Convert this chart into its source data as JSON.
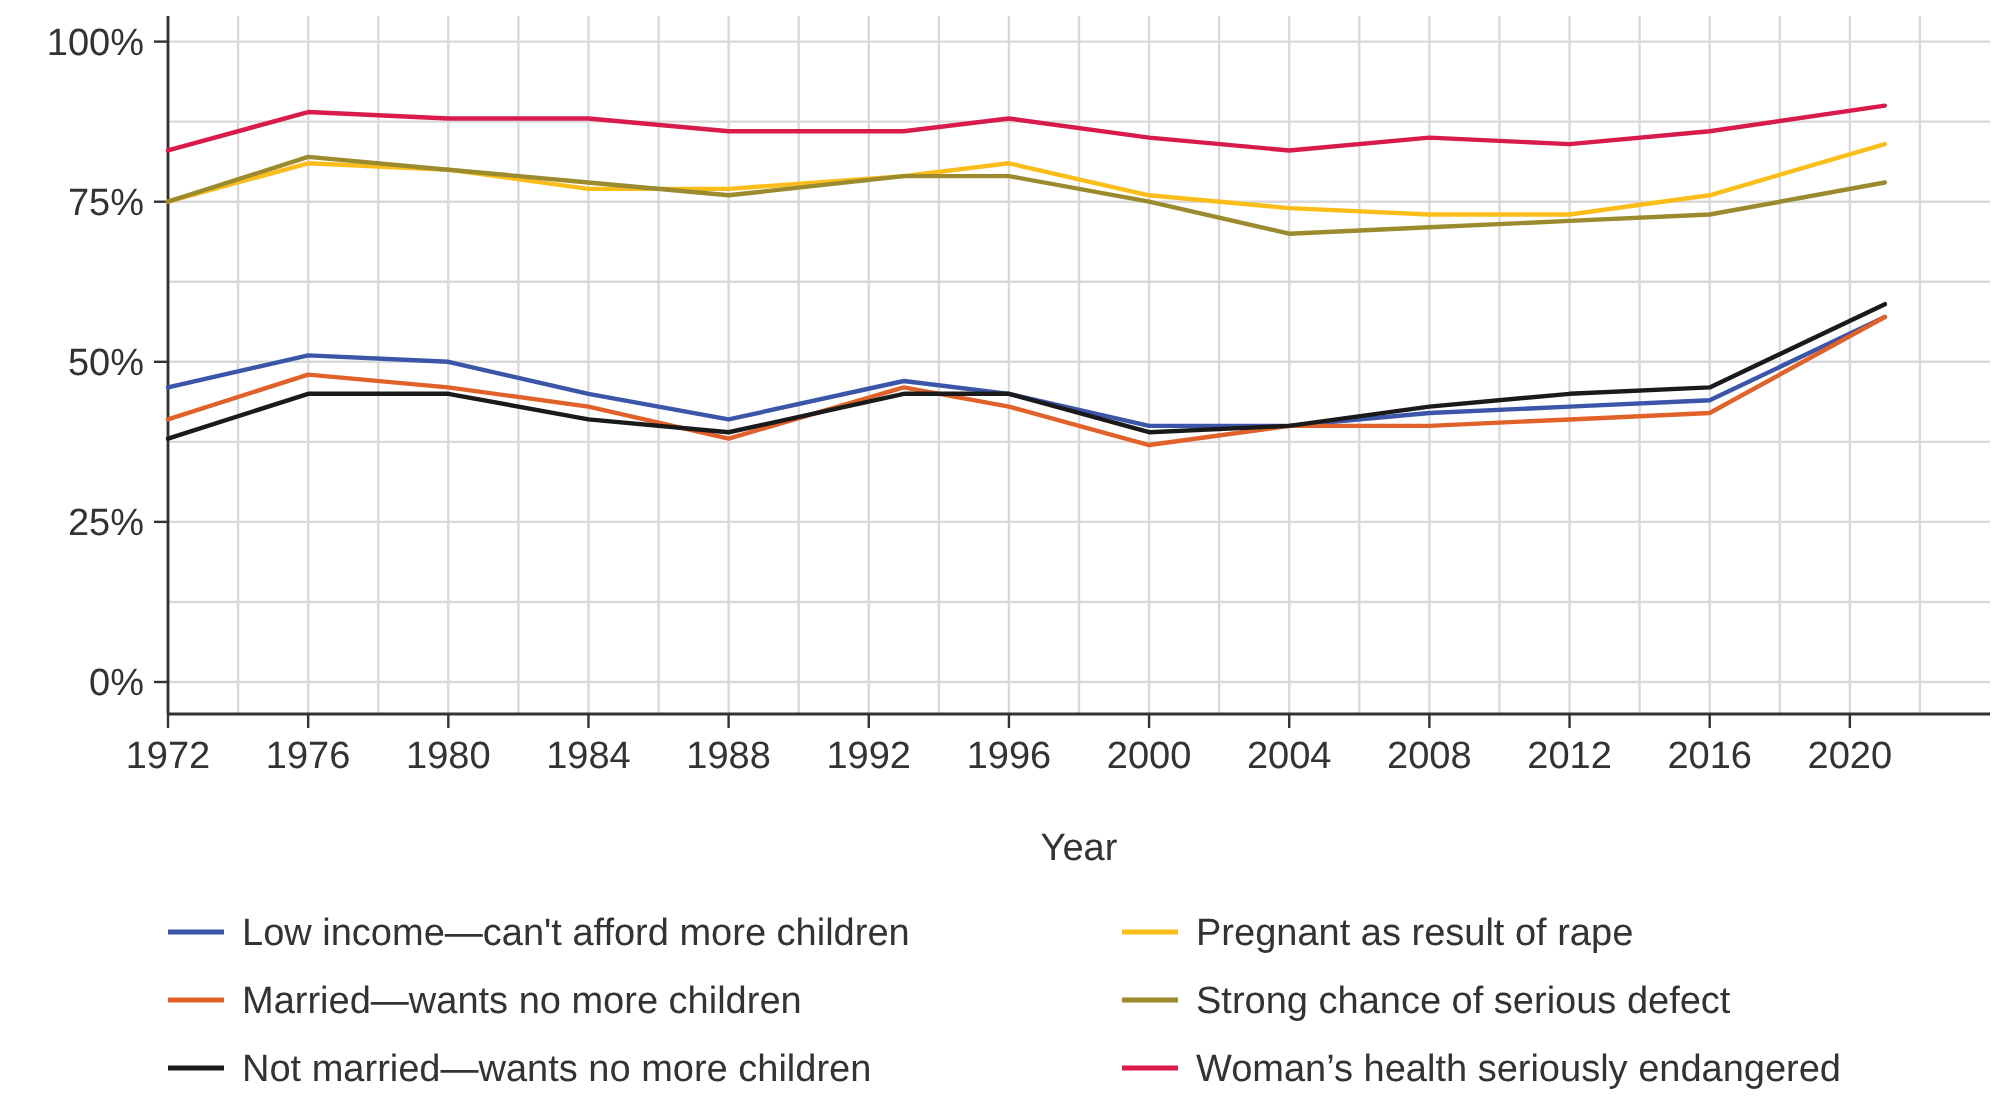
{
  "chart_data": {
    "type": "line",
    "xlabel": "Year",
    "x": [
      1972,
      1976,
      1980,
      1984,
      1988,
      1993,
      1996,
      2000,
      2004,
      2008,
      2012,
      2016,
      2021
    ],
    "xlim": [
      1972,
      2024
    ],
    "xticks": [
      1972,
      {
        "value": 1974,
        "label": null
      },
      1976,
      {
        "value": 1978,
        "label": null
      },
      1980,
      {
        "value": 1982,
        "label": null
      },
      1984,
      {
        "value": 1986,
        "label": null
      },
      1988,
      {
        "value": 1990,
        "label": null
      },
      1992,
      {
        "value": 1994,
        "label": null
      },
      1996,
      {
        "value": 1998,
        "label": null
      },
      2000,
      {
        "value": 2002,
        "label": null
      },
      2004,
      {
        "value": 2006,
        "label": null
      },
      2008,
      {
        "value": 2010,
        "label": null
      },
      2012,
      {
        "value": 2014,
        "label": null
      },
      2016,
      {
        "value": 2018,
        "label": null
      },
      2020,
      {
        "value": 2022,
        "label": null
      }
    ],
    "ylim": [
      -5,
      104
    ],
    "yticks": [
      {
        "value": 0,
        "label": "0%"
      },
      {
        "value": 12.5,
        "label": null
      },
      {
        "value": 25,
        "label": "25%"
      },
      {
        "value": 37.5,
        "label": null
      },
      {
        "value": 50,
        "label": "50%"
      },
      {
        "value": 62.5,
        "label": null
      },
      {
        "value": 75,
        "label": "75%"
      },
      {
        "value": 87.5,
        "label": null
      },
      {
        "value": 100,
        "label": "100%"
      }
    ],
    "grid": true,
    "legend": "bottom",
    "line_style": "solid",
    "marker": "none",
    "series": [
      {
        "name": "Low income—can't afford more children",
        "color": "#3b55a8",
        "values": [
          46,
          51,
          50,
          45,
          41,
          47,
          45,
          40,
          40,
          42,
          43,
          44,
          57
        ]
      },
      {
        "name": "Pregnant as result of rape",
        "color": "#fbbd1a",
        "values": [
          75,
          81,
          80,
          77,
          77,
          79,
          81,
          76,
          74,
          73,
          73,
          76,
          84
        ]
      },
      {
        "name": "Married—wants no more children",
        "color": "#e0622a",
        "values": [
          41,
          48,
          46,
          43,
          38,
          46,
          43,
          37,
          40,
          40,
          41,
          42,
          57
        ]
      },
      {
        "name": "Strong chance of serious defect",
        "color": "#9b8a2e",
        "values": [
          75,
          82,
          80,
          78,
          76,
          79,
          79,
          75,
          70,
          71,
          72,
          73,
          78
        ]
      },
      {
        "name": "Not married—wants no more children",
        "color": "#1a1a1a",
        "values": [
          38,
          45,
          45,
          41,
          39,
          45,
          45,
          39,
          40,
          43,
          45,
          46,
          59
        ]
      },
      {
        "name": "Woman’s health seriously endangered",
        "color": "#d81b4a",
        "values": [
          83,
          89,
          88,
          88,
          86,
          86,
          88,
          85,
          83,
          85,
          84,
          86,
          90
        ]
      }
    ]
  }
}
